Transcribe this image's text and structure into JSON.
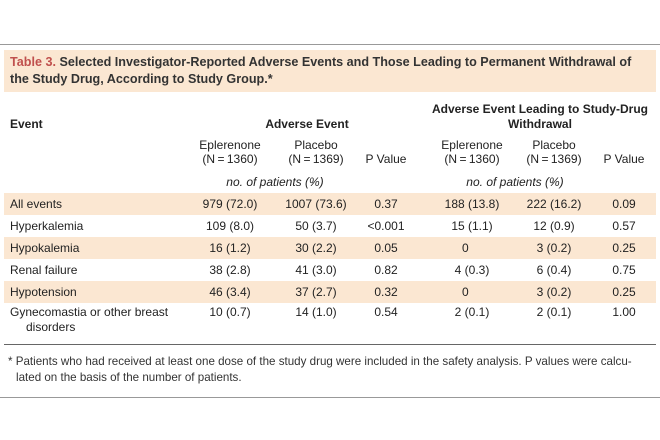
{
  "title": {
    "label": "Table 3.",
    "text": " Selected Investigator-Reported Adverse Events and Those Leading to Permanent Withdrawal of the Study Drug, According to Study Group.*"
  },
  "header": {
    "event": "Event",
    "adverse_event": "Adverse Event",
    "withdrawal_line1": "Adverse Event Leading to Study-Drug",
    "withdrawal_line2": "Withdrawal",
    "eplerenone": "Eplerenone",
    "eplerenone_n": "(N = 1360)",
    "placebo": "Placebo",
    "placebo_n": "(N = 1369)",
    "p_value": "P Value",
    "units": "no. of patients (%)"
  },
  "rows": [
    {
      "event": "All events",
      "ae_epl": "979 (72.0)",
      "ae_pla": "1007 (73.6)",
      "ae_p": "0.37",
      "wd_epl": "188 (13.8)",
      "wd_pla": "222 (16.2)",
      "wd_p": "0.09"
    },
    {
      "event": "Hyperkalemia",
      "ae_epl": "109 (8.0)",
      "ae_pla": "50 (3.7)",
      "ae_p": "<0.001",
      "wd_epl": "15 (1.1)",
      "wd_pla": "12 (0.9)",
      "wd_p": "0.57"
    },
    {
      "event": "Hypokalemia",
      "ae_epl": "16 (1.2)",
      "ae_pla": "30 (2.2)",
      "ae_p": "0.05",
      "wd_epl": "0",
      "wd_pla": "3 (0.2)",
      "wd_p": "0.25"
    },
    {
      "event": "Renal failure",
      "ae_epl": "38 (2.8)",
      "ae_pla": "41 (3.0)",
      "ae_p": "0.82",
      "wd_epl": "4 (0.3)",
      "wd_pla": "6 (0.4)",
      "wd_p": "0.75"
    },
    {
      "event": "Hypotension",
      "ae_epl": "46 (3.4)",
      "ae_pla": "37 (2.7)",
      "ae_p": "0.32",
      "wd_epl": "0",
      "wd_pla": "3 (0.2)",
      "wd_p": "0.25"
    },
    {
      "event_line1": "Gynecomastia or other breast",
      "event_line2": "disorders",
      "ae_epl": "10 (0.7)",
      "ae_pla": "14 (1.0)",
      "ae_p": "0.54",
      "wd_epl": "2 (0.1)",
      "wd_pla": "2 (0.1)",
      "wd_p": "1.00"
    }
  ],
  "footnote": {
    "line1": "* Patients who had received at least one dose of the study drug were included in the safety analysis. P values were calcu-",
    "line2": "lated on the basis of the number of patients."
  }
}
